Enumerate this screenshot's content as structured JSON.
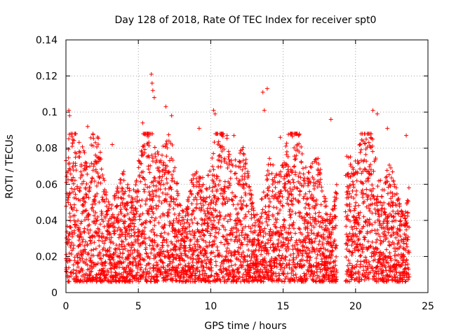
{
  "chart_data": {
    "type": "scatter",
    "title": "Day 128 of 2018, Rate Of TEC Index for receiver spt0",
    "xlabel": "GPS time / hours",
    "ylabel": "ROTI / TECUs",
    "xlim": [
      0,
      25
    ],
    "ylim": [
      0,
      0.14
    ],
    "x_ticks": [
      "0",
      "5",
      "10",
      "15",
      "20",
      "25"
    ],
    "y_ticks": [
      "0",
      "0.02",
      "0.04",
      "0.06",
      "0.08",
      "0.1",
      "0.12",
      "0.14"
    ],
    "grid": true,
    "marker": "+",
    "color": "#ff0000",
    "series": [
      {
        "name": "spt0",
        "data_gap_hours": [
          18.7,
          19.3
        ],
        "peaks": [
          {
            "x": 0.2,
            "y": 0.101
          },
          {
            "x": 0.25,
            "y": 0.098
          },
          {
            "x": 1.5,
            "y": 0.092
          },
          {
            "x": 3.2,
            "y": 0.082
          },
          {
            "x": 5.3,
            "y": 0.094
          },
          {
            "x": 5.9,
            "y": 0.121
          },
          {
            "x": 5.95,
            "y": 0.116
          },
          {
            "x": 6.0,
            "y": 0.112
          },
          {
            "x": 6.1,
            "y": 0.108
          },
          {
            "x": 6.9,
            "y": 0.103
          },
          {
            "x": 7.3,
            "y": 0.098
          },
          {
            "x": 9.2,
            "y": 0.091
          },
          {
            "x": 10.2,
            "y": 0.101
          },
          {
            "x": 10.3,
            "y": 0.099
          },
          {
            "x": 11.6,
            "y": 0.087
          },
          {
            "x": 13.6,
            "y": 0.111
          },
          {
            "x": 13.9,
            "y": 0.113
          },
          {
            "x": 13.7,
            "y": 0.101
          },
          {
            "x": 14.8,
            "y": 0.086
          },
          {
            "x": 18.3,
            "y": 0.096
          },
          {
            "x": 21.2,
            "y": 0.101
          },
          {
            "x": 21.5,
            "y": 0.099
          },
          {
            "x": 22.2,
            "y": 0.091
          },
          {
            "x": 23.5,
            "y": 0.087
          }
        ]
      }
    ]
  }
}
